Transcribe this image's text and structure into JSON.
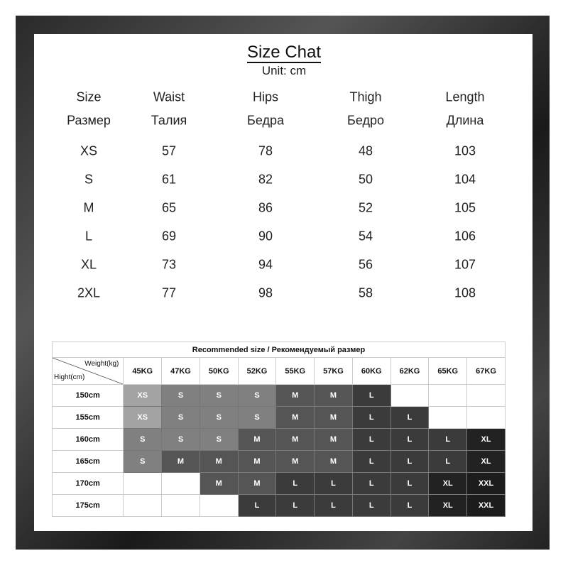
{
  "title": "Size Chat",
  "unit": "Unit: cm",
  "size_table": {
    "headers_en": [
      "Size",
      "Waist",
      "Hips",
      "Thigh",
      "Length"
    ],
    "headers_ru": [
      "Размер",
      "Талия",
      "Бедра",
      "Бедро",
      "Длина"
    ],
    "rows": [
      [
        "XS",
        "57",
        "78",
        "48",
        "103"
      ],
      [
        "S",
        "61",
        "82",
        "50",
        "104"
      ],
      [
        "M",
        "65",
        "86",
        "52",
        "105"
      ],
      [
        "L",
        "69",
        "90",
        "54",
        "106"
      ],
      [
        "XL",
        "73",
        "94",
        "56",
        "107"
      ],
      [
        "2XL",
        "77",
        "98",
        "58",
        "108"
      ]
    ]
  },
  "recommended": {
    "title": "Recommended size / Рекомендуемый размер",
    "weight_label": "Weight(kg)",
    "height_label": "Hight(cm)",
    "weights": [
      "45KG",
      "47KG",
      "50KG",
      "52KG",
      "55KG",
      "57KG",
      "60KG",
      "62KG",
      "65KG",
      "67KG"
    ],
    "heights": [
      "150cm",
      "155cm",
      "160cm",
      "165cm",
      "170cm",
      "175cm"
    ],
    "grid": [
      [
        "XS",
        "S",
        "S",
        "S",
        "M",
        "M",
        "L",
        "",
        "",
        ""
      ],
      [
        "XS",
        "S",
        "S",
        "S",
        "M",
        "M",
        "L",
        "L",
        "",
        ""
      ],
      [
        "S",
        "S",
        "S",
        "M",
        "M",
        "M",
        "L",
        "L",
        "L",
        "XL"
      ],
      [
        "S",
        "M",
        "M",
        "M",
        "M",
        "M",
        "L",
        "L",
        "L",
        "XL"
      ],
      [
        "",
        "",
        "M",
        "M",
        "L",
        "L",
        "L",
        "L",
        "XL",
        "XXL"
      ],
      [
        "",
        "",
        "",
        "L",
        "L",
        "L",
        "L",
        "L",
        "XL",
        "XXL"
      ]
    ],
    "colors": {
      "XS": "#a3a3a3",
      "S": "#808080",
      "M": "#555555",
      "L": "#3b3b3b",
      "XL": "#222222",
      "XXL": "#1c1c1c",
      "": "#ffffff"
    }
  }
}
